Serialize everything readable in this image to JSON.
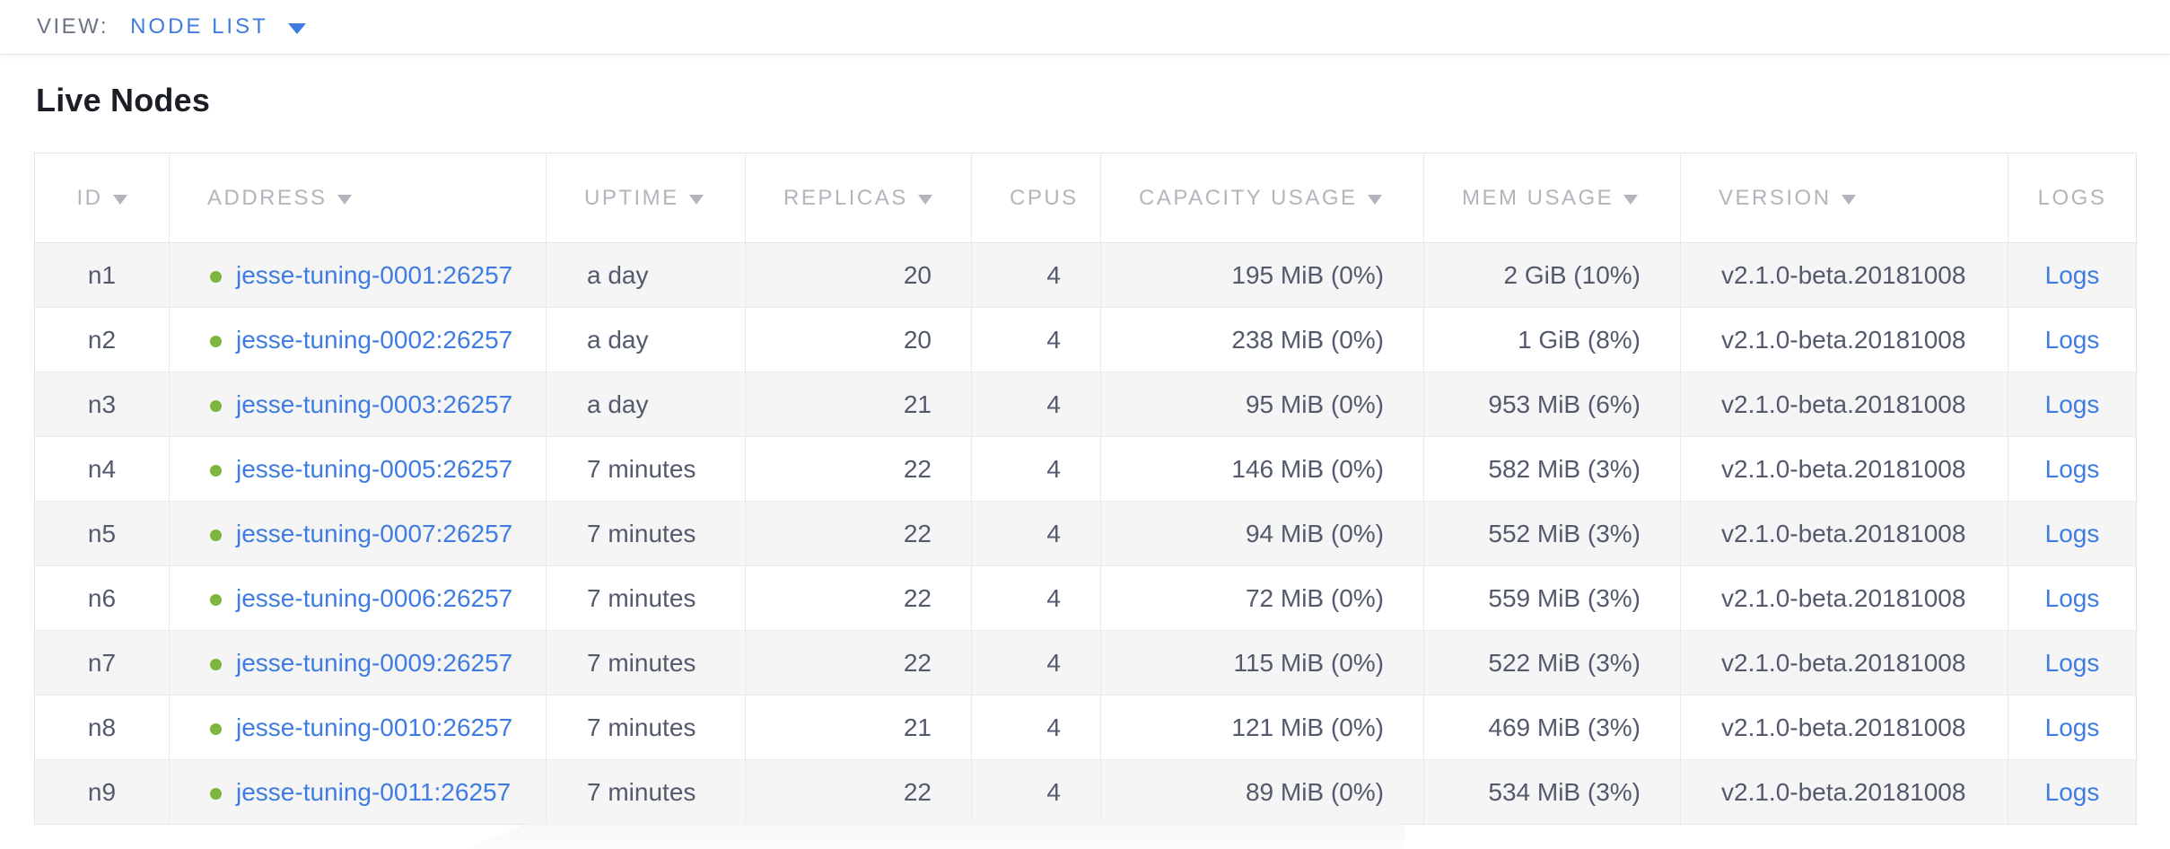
{
  "view_bar": {
    "label": "VIEW:",
    "selected": "NODE LIST"
  },
  "page": {
    "title": "Live Nodes"
  },
  "colors": {
    "accent_blue": "#3e7ce2",
    "link_blue": "#3e7ce4",
    "live_green": "#7db53e",
    "header_gray": "#b2b5bc",
    "cell_text": "#525a6c",
    "stripe_gray": "#f5f5f6"
  },
  "table": {
    "columns": [
      {
        "key": "id",
        "label": "ID",
        "sortable": true,
        "align": "center"
      },
      {
        "key": "address",
        "label": "ADDRESS",
        "sortable": true,
        "align": "left"
      },
      {
        "key": "uptime",
        "label": "UPTIME",
        "sortable": true,
        "align": "left"
      },
      {
        "key": "replicas",
        "label": "REPLICAS",
        "sortable": true,
        "align": "right"
      },
      {
        "key": "cpus",
        "label": "CPUS",
        "sortable": false,
        "align": "right"
      },
      {
        "key": "capacity",
        "label": "CAPACITY USAGE",
        "sortable": true,
        "align": "right"
      },
      {
        "key": "mem",
        "label": "MEM USAGE",
        "sortable": true,
        "align": "right"
      },
      {
        "key": "version",
        "label": "VERSION",
        "sortable": true,
        "align": "left"
      },
      {
        "key": "logs",
        "label": "LOGS",
        "sortable": false,
        "align": "center"
      }
    ],
    "rows": [
      {
        "id": "n1",
        "status": "live",
        "address": "jesse-tuning-0001:26257",
        "uptime": "a day",
        "replicas": "20",
        "cpus": "4",
        "capacity": "195 MiB (0%)",
        "mem": "2 GiB (10%)",
        "version": "v2.1.0-beta.20181008",
        "logs": "Logs"
      },
      {
        "id": "n2",
        "status": "live",
        "address": "jesse-tuning-0002:26257",
        "uptime": "a day",
        "replicas": "20",
        "cpus": "4",
        "capacity": "238 MiB (0%)",
        "mem": "1 GiB (8%)",
        "version": "v2.1.0-beta.20181008",
        "logs": "Logs"
      },
      {
        "id": "n3",
        "status": "live",
        "address": "jesse-tuning-0003:26257",
        "uptime": "a day",
        "replicas": "21",
        "cpus": "4",
        "capacity": "95 MiB (0%)",
        "mem": "953 MiB (6%)",
        "version": "v2.1.0-beta.20181008",
        "logs": "Logs"
      },
      {
        "id": "n4",
        "status": "live",
        "address": "jesse-tuning-0005:26257",
        "uptime": "7 minutes",
        "replicas": "22",
        "cpus": "4",
        "capacity": "146 MiB (0%)",
        "mem": "582 MiB (3%)",
        "version": "v2.1.0-beta.20181008",
        "logs": "Logs"
      },
      {
        "id": "n5",
        "status": "live",
        "address": "jesse-tuning-0007:26257",
        "uptime": "7 minutes",
        "replicas": "22",
        "cpus": "4",
        "capacity": "94 MiB (0%)",
        "mem": "552 MiB (3%)",
        "version": "v2.1.0-beta.20181008",
        "logs": "Logs"
      },
      {
        "id": "n6",
        "status": "live",
        "address": "jesse-tuning-0006:26257",
        "uptime": "7 minutes",
        "replicas": "22",
        "cpus": "4",
        "capacity": "72 MiB (0%)",
        "mem": "559 MiB (3%)",
        "version": "v2.1.0-beta.20181008",
        "logs": "Logs"
      },
      {
        "id": "n7",
        "status": "live",
        "address": "jesse-tuning-0009:26257",
        "uptime": "7 minutes",
        "replicas": "22",
        "cpus": "4",
        "capacity": "115 MiB (0%)",
        "mem": "522 MiB (3%)",
        "version": "v2.1.0-beta.20181008",
        "logs": "Logs"
      },
      {
        "id": "n8",
        "status": "live",
        "address": "jesse-tuning-0010:26257",
        "uptime": "7 minutes",
        "replicas": "21",
        "cpus": "4",
        "capacity": "121 MiB (0%)",
        "mem": "469 MiB (3%)",
        "version": "v2.1.0-beta.20181008",
        "logs": "Logs"
      },
      {
        "id": "n9",
        "status": "live",
        "address": "jesse-tuning-0011:26257",
        "uptime": "7 minutes",
        "replicas": "22",
        "cpus": "4",
        "capacity": "89 MiB (0%)",
        "mem": "534 MiB (3%)",
        "version": "v2.1.0-beta.20181008",
        "logs": "Logs"
      }
    ]
  }
}
